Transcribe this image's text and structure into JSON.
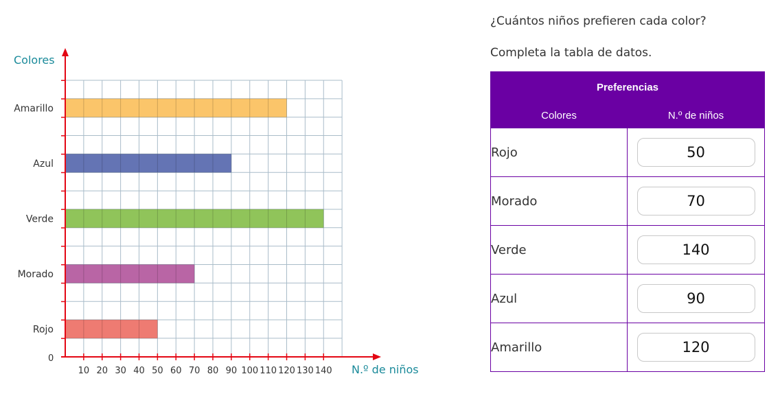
{
  "chart_data": {
    "type": "bar",
    "orientation": "horizontal",
    "categories": [
      "Amarillo",
      "Azul",
      "Verde",
      "Morado",
      "Rojo"
    ],
    "values": [
      120,
      90,
      140,
      70,
      50
    ],
    "colors": [
      "#fbc56a",
      "#6474b4",
      "#90c45a",
      "#b965a5",
      "#ee7b72"
    ],
    "xlabel": "N.º de niños",
    "ylabel": "Colores",
    "origin_label": "0",
    "xticks": [
      10,
      20,
      30,
      40,
      50,
      60,
      70,
      80,
      90,
      100,
      110,
      120,
      130,
      140
    ],
    "xlim": [
      0,
      150
    ],
    "grid": true
  },
  "question": "¿Cuántos niños prefieren cada color?",
  "instruction": "Completa la tabla de datos.",
  "table": {
    "title": "Preferencias",
    "col_colors": "Colores",
    "col_count": "N.º de niños",
    "rows": [
      {
        "color": "Rojo",
        "value": "50"
      },
      {
        "color": "Morado",
        "value": "70"
      },
      {
        "color": "Verde",
        "value": "140"
      },
      {
        "color": "Azul",
        "value": "90"
      },
      {
        "color": "Amarillo",
        "value": "120"
      }
    ]
  }
}
